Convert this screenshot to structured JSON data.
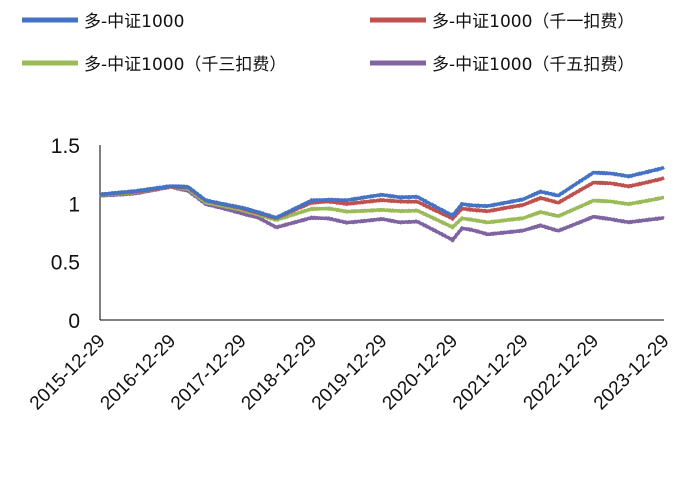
{
  "chart_data": {
    "type": "line",
    "title": "",
    "xlabel": "",
    "ylabel": "",
    "ylim": [
      0,
      1.5
    ],
    "yticks": [
      "0",
      "0.5",
      "1",
      "1.5"
    ],
    "x_ticks": [
      "2015-12-29",
      "2016-12-29",
      "2017-12-29",
      "2018-12-29",
      "2019-12-29",
      "2020-12-29",
      "2021-12-29",
      "2022-12-29",
      "2023-12-29"
    ],
    "x_dates": [
      "2015-12-29",
      "2016-06-29",
      "2016-12-29",
      "2017-03-29",
      "2017-06-29",
      "2017-12-29",
      "2018-03-29",
      "2018-06-29",
      "2018-12-29",
      "2019-03-29",
      "2019-06-29",
      "2019-12-29",
      "2020-03-29",
      "2020-06-29",
      "2020-12-29",
      "2021-02-15",
      "2021-03-29",
      "2021-06-29",
      "2021-12-29",
      "2022-03-29",
      "2022-06-29",
      "2022-12-29",
      "2023-03-29",
      "2023-06-29",
      "2023-12-29"
    ],
    "grid": false,
    "legend_position": "top",
    "series": [
      {
        "name": "多-中证1000",
        "color": "#4472C4",
        "values": [
          1.07,
          1.1,
          1.15,
          1.14,
          1.03,
          0.97,
          0.93,
          0.88,
          1.02,
          1.03,
          1.02,
          1.07,
          1.05,
          1.06,
          0.9,
          1.0,
          0.99,
          0.98,
          1.03,
          1.1,
          1.06,
          1.26,
          1.25,
          1.23,
          1.31
        ]
      },
      {
        "name": "多-中证1000（千一扣费）",
        "color": "#C0504D",
        "values": [
          1.07,
          1.1,
          1.15,
          1.14,
          1.03,
          0.96,
          0.92,
          0.87,
          1.0,
          1.01,
          0.99,
          1.03,
          1.02,
          1.02,
          0.87,
          0.96,
          0.95,
          0.93,
          0.98,
          1.04,
          1.0,
          1.18,
          1.17,
          1.15,
          1.22
        ]
      },
      {
        "name": "多-中证1000（千三扣费）",
        "color": "#9BBB59",
        "values": [
          1.07,
          1.1,
          1.15,
          1.13,
          1.01,
          0.94,
          0.9,
          0.85,
          0.95,
          0.95,
          0.93,
          0.95,
          0.94,
          0.94,
          0.79,
          0.87,
          0.86,
          0.83,
          0.87,
          0.92,
          0.89,
          1.03,
          1.02,
          1.0,
          1.05
        ]
      },
      {
        "name": "多-中证1000（千五扣费）",
        "color": "#8064A2",
        "values": [
          1.07,
          1.09,
          1.14,
          1.11,
          0.99,
          0.91,
          0.87,
          0.79,
          0.88,
          0.87,
          0.84,
          0.87,
          0.84,
          0.84,
          0.68,
          0.78,
          0.77,
          0.73,
          0.77,
          0.81,
          0.77,
          0.89,
          0.87,
          0.84,
          0.87
        ]
      }
    ]
  }
}
